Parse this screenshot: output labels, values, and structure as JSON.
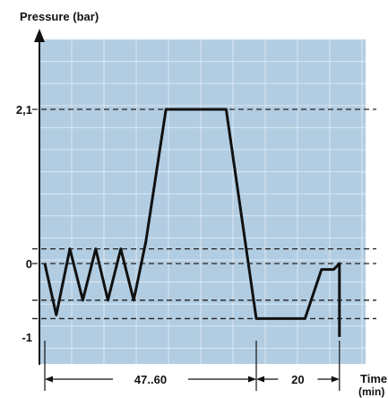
{
  "chart_data": {
    "type": "line",
    "title": "",
    "ylabel": "Pressure (bar)",
    "xlabel": "Time (min)",
    "xlabel_lines": [
      "Time",
      "(min)"
    ],
    "ylim": [
      -1,
      2.6
    ],
    "y_ticks": [
      {
        "value": 2.1,
        "label": "2,1"
      },
      {
        "value": 0,
        "label": "0"
      },
      {
        "value": -1,
        "label": "-1"
      }
    ],
    "reference_lines": [
      2.1,
      0.2,
      0,
      -0.5,
      -0.75
    ],
    "series": [
      {
        "values": [
          [
            0,
            0
          ],
          [
            1.6,
            -0.7
          ],
          [
            3.5,
            0.2
          ],
          [
            5.3,
            -0.5
          ],
          [
            7.1,
            0.2
          ],
          [
            8.8,
            -0.5
          ],
          [
            10.6,
            0.2
          ],
          [
            12.4,
            -0.5
          ],
          [
            14.1,
            0.3
          ],
          [
            16.9,
            2.1
          ],
          [
            25.3,
            2.1
          ],
          [
            29.5,
            -0.75
          ],
          [
            36.3,
            -0.75
          ],
          [
            38.6,
            -0.08
          ],
          [
            40.3,
            -0.08
          ],
          [
            41.1,
            0
          ],
          [
            41.1,
            -1
          ]
        ]
      }
    ],
    "intervals": [
      {
        "from": 0,
        "to": 29.5,
        "label": "47..60"
      },
      {
        "from": 29.5,
        "to": 41.1,
        "label": "20"
      }
    ],
    "grid": true,
    "colors": {
      "plot_bg": "#b2cde2",
      "grid": "#dbe7f1",
      "line": "#111111"
    }
  }
}
